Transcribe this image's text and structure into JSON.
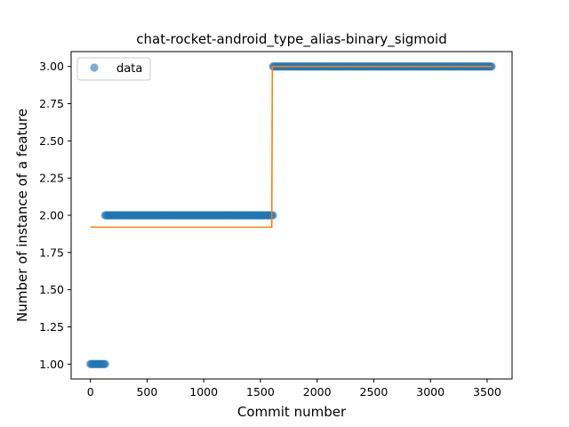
{
  "chart_data": {
    "type": "scatter",
    "title": "chat-rocket-android_type_alias-binary_sigmoid",
    "xlabel": "Commit number",
    "ylabel": "Number of instance of a feature",
    "xlim": [
      -170,
      3720
    ],
    "ylim": [
      0.9,
      3.1
    ],
    "xticks": [
      0,
      500,
      1000,
      1500,
      2000,
      2500,
      3000,
      3500
    ],
    "yticks": [
      1.0,
      1.25,
      1.5,
      1.75,
      2.0,
      2.25,
      2.5,
      2.75,
      3.0
    ],
    "ytick_labels": [
      "1.00",
      "1.25",
      "1.50",
      "1.75",
      "2.00",
      "2.25",
      "2.50",
      "2.75",
      "3.00"
    ],
    "grid": false,
    "legend": {
      "position": "top-left",
      "entries": [
        "data"
      ]
    },
    "series": [
      {
        "name": "data",
        "kind": "points",
        "color": "#1f77b4",
        "segments": [
          {
            "x_start": 0,
            "x_end": 130,
            "y": 1.0
          },
          {
            "x_start": 130,
            "x_end": 1610,
            "y": 2.0
          },
          {
            "x_start": 1610,
            "x_end": 3540,
            "y": 3.0
          }
        ]
      },
      {
        "kind": "line",
        "color": "#ff7f0e",
        "x": [
          0,
          1600,
          1605,
          3540
        ],
        "y": [
          1.92,
          1.92,
          3.0,
          3.0
        ]
      }
    ]
  }
}
